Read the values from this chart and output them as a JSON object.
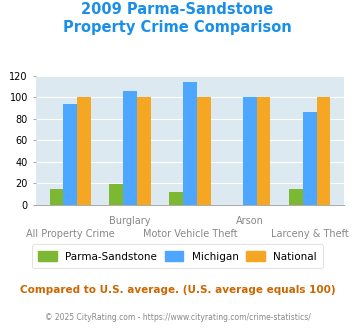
{
  "title_line1": "2009 Parma-Sandstone",
  "title_line2": "Property Crime Comparison",
  "groups": [
    {
      "label": "All Property Crime",
      "parma": 15,
      "michigan": 94,
      "national": 100
    },
    {
      "label": "Burglary",
      "parma": 19,
      "michigan": 106,
      "national": 100
    },
    {
      "label": "Motor Vehicle Theft",
      "parma": 12,
      "michigan": 114,
      "national": 100
    },
    {
      "label": "Arson",
      "parma": 0,
      "michigan": 100,
      "national": 100
    },
    {
      "label": "Larceny & Theft",
      "parma": 15,
      "michigan": 86,
      "national": 100
    }
  ],
  "color_parma": "#7db832",
  "color_michigan": "#4da6ff",
  "color_national": "#f5a623",
  "bg_color": "#dce9f0",
  "ylim": [
    0,
    120
  ],
  "yticks": [
    0,
    20,
    40,
    60,
    80,
    100,
    120
  ],
  "legend_labels": [
    "Parma-Sandstone",
    "Michigan",
    "National"
  ],
  "footnote1": "Compared to U.S. average. (U.S. average equals 100)",
  "footnote2": "© 2025 CityRating.com - https://www.cityrating.com/crime-statistics/",
  "title_color": "#1a8fea",
  "footnote1_color": "#cc6600",
  "footnote2_color": "#888888",
  "row1_labels": [
    "Burglary",
    "Arson"
  ],
  "row1_indices": [
    1,
    3
  ],
  "row2_labels": [
    "All Property Crime",
    "Motor Vehicle Theft",
    "Larceny & Theft"
  ],
  "row2_indices": [
    0,
    2,
    4
  ]
}
